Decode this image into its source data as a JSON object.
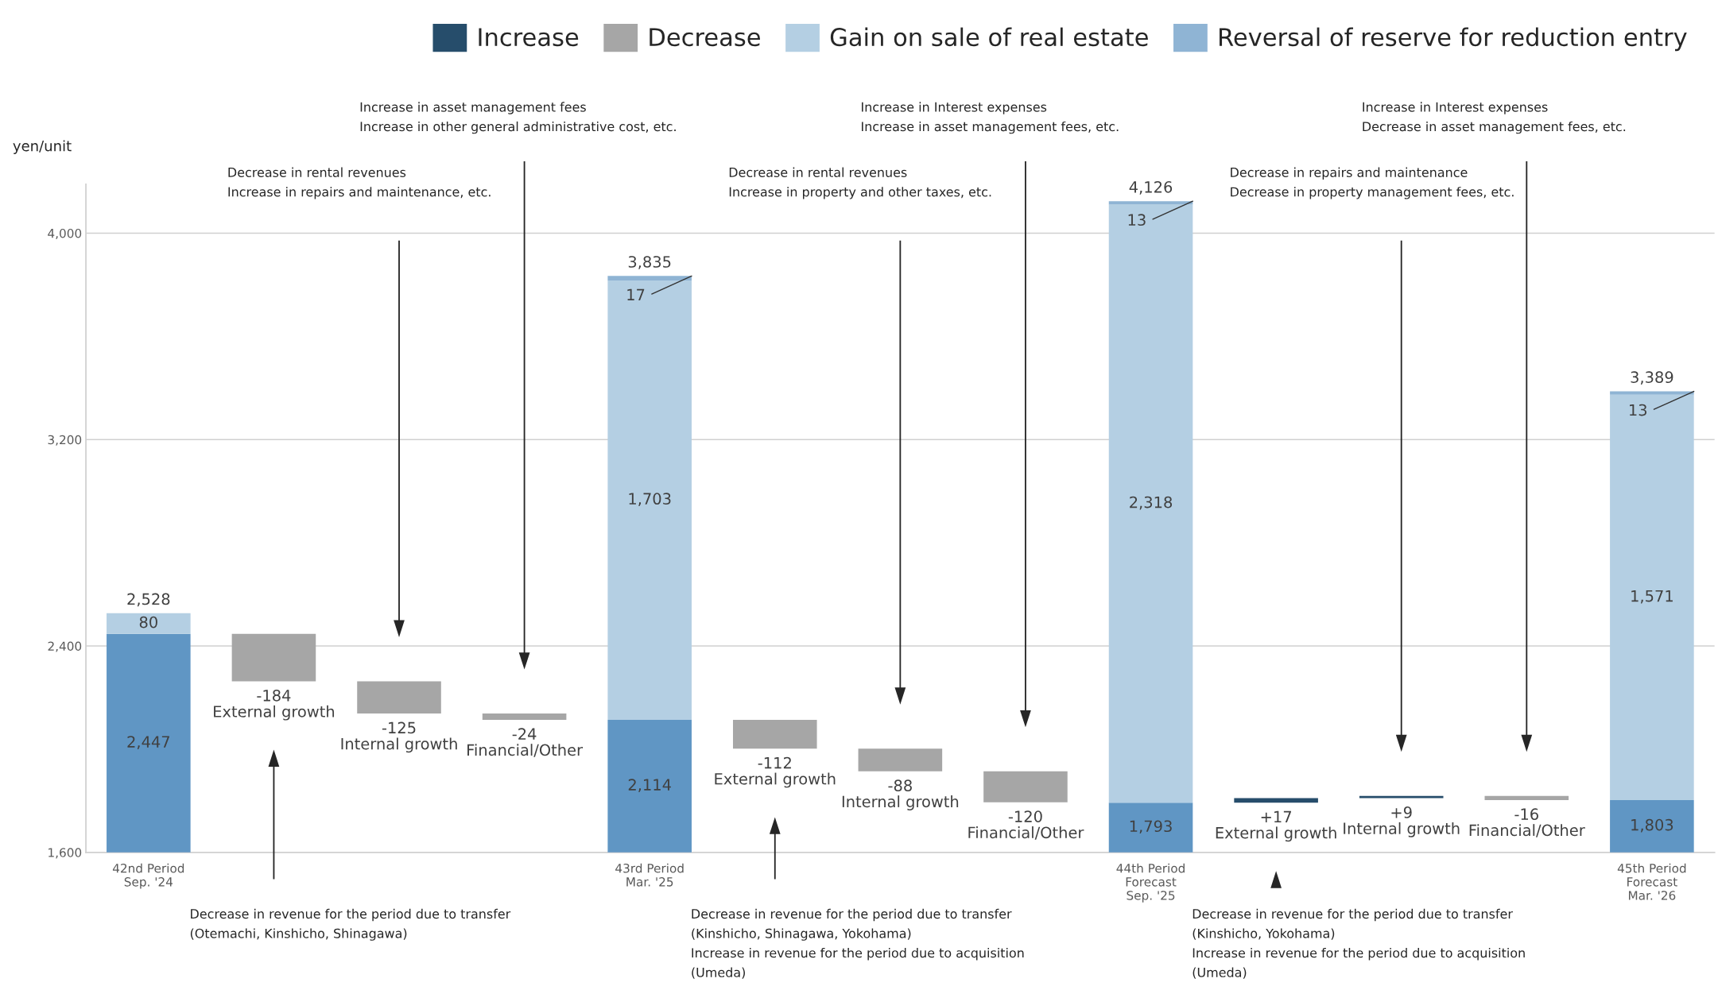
{
  "chart_data": {
    "type": "bar",
    "stacked": true,
    "ylabel": "yen/unit",
    "categories": [
      "42nd Period\nSep. '24",
      "External growth",
      "Internal growth",
      "Financial/Other",
      "43rd Period\nMar. '25",
      "External growth",
      "Internal growth",
      "Financial/Other",
      "44th Period\nForecast\nSep. '25",
      "External growth",
      "Internal growth",
      "Financial/Other",
      "45th Period\nForecast\nMar. '26"
    ],
    "series": [
      {
        "color": "#6096c4",
        "values": [
          2447,
          null,
          null,
          null,
          2114,
          null,
          null,
          null,
          1793,
          null,
          null,
          null,
          1803
        ],
        "value_labels": [
          "2,447",
          null,
          null,
          null,
          "2,114",
          null,
          null,
          null,
          "1,793",
          null,
          null,
          null,
          "1,803"
        ]
      },
      {
        "name": "Increase",
        "color": "#264d6b",
        "values": [
          null,
          null,
          null,
          null,
          null,
          null,
          null,
          null,
          null,
          17,
          9,
          null,
          null
        ],
        "base": [
          null,
          null,
          null,
          null,
          null,
          null,
          null,
          null,
          null,
          1793,
          1810,
          null,
          null
        ],
        "value_labels": [
          null,
          null,
          null,
          null,
          null,
          null,
          null,
          null,
          null,
          "+17",
          "+9",
          null,
          null
        ]
      },
      {
        "name": "Decrease",
        "color": "#a6a6a6",
        "values": [
          null,
          -184,
          -125,
          -24,
          null,
          -112,
          -88,
          -120,
          null,
          null,
          null,
          -16,
          null
        ],
        "base": [
          null,
          2447,
          2263,
          2138,
          null,
          2114,
          2002,
          1914,
          null,
          null,
          null,
          1819,
          null
        ],
        "value_labels": [
          null,
          "-184",
          "-125",
          "-24",
          null,
          "-112",
          "-88",
          "-120",
          null,
          null,
          null,
          "-16",
          null
        ]
      },
      {
        "name": "Gain on sale of real estate",
        "color": "#b4cfe3",
        "values": [
          80,
          null,
          null,
          null,
          1703,
          null,
          null,
          null,
          2318,
          null,
          null,
          null,
          1571
        ],
        "base": [
          2447,
          null,
          null,
          null,
          2114,
          null,
          null,
          null,
          1793,
          null,
          null,
          null,
          1803
        ],
        "value_labels": [
          "80",
          null,
          null,
          null,
          "1,703",
          null,
          null,
          null,
          "2,318",
          null,
          null,
          null,
          "1,571"
        ]
      },
      {
        "name": "Reversal of reserve for reduction entry",
        "color": "#8fb4d4",
        "values": [
          null,
          null,
          null,
          null,
          17,
          null,
          null,
          null,
          13,
          null,
          null,
          null,
          13
        ],
        "base": [
          null,
          null,
          null,
          null,
          3817,
          null,
          null,
          null,
          4111,
          null,
          null,
          null,
          3374
        ],
        "value_labels": [
          null,
          null,
          null,
          null,
          "17",
          null,
          null,
          null,
          "13",
          null,
          null,
          null,
          "13"
        ]
      }
    ],
    "totals": [
      "2,528",
      null,
      null,
      null,
      "3,835",
      null,
      null,
      null,
      "4,126",
      null,
      null,
      null,
      "3,389"
    ],
    "ylim": [
      1600,
      4190
    ],
    "yticks": [
      {
        "value": 1600,
        "label": "1,600"
      },
      {
        "value": 2400,
        "label": "2,400"
      },
      {
        "value": 3200,
        "label": "3,200"
      },
      {
        "value": 4000,
        "label": "4,000"
      }
    ],
    "grid": "y",
    "legend": "top right",
    "annotations": [
      "Decrease in revenue for the period due to transfer\n(Otemachi, Kinshicho, Shinagawa)",
      "Decrease in rental revenues\nIncrease in repairs and maintenance, etc.",
      "Increase in asset management fees\nIncrease in other general administrative cost, etc.",
      "Decrease in revenue for the period due to transfer\n(Kinshicho, Shinagawa, Yokohama)\nIncrease in revenue for the period due to acquisition\n(Umeda)",
      "Decrease in rental revenues\nIncrease in property and other taxes, etc.",
      "Increase in Interest expenses\nIncrease in asset management fees, etc.",
      "Decrease in revenue for the period due to transfer\n(Kinshicho, Yokohama)\nIncrease in revenue for the period due to acquisition\n(Umeda)",
      "Decrease in repairs and maintenance\nDecrease in property management fees, etc.",
      "Increase in Interest expenses\nDecrease in asset management fees, etc."
    ]
  }
}
